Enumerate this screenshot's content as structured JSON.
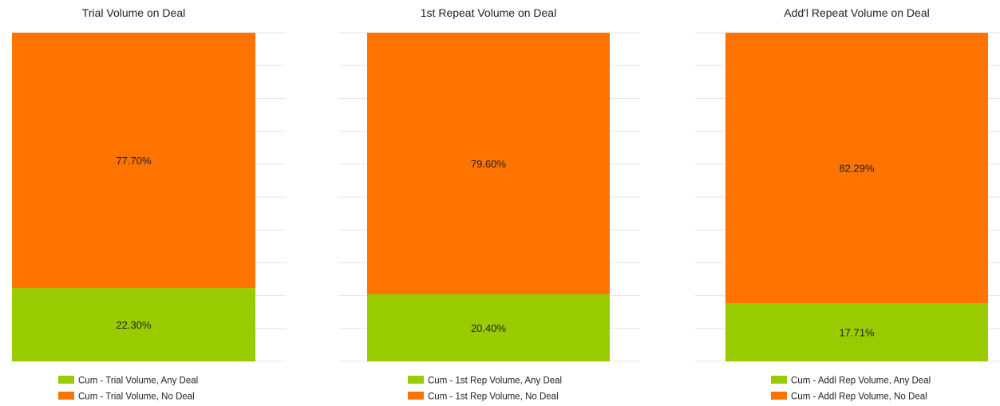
{
  "colors": {
    "any_deal": "#99cc00",
    "no_deal": "#ff7300"
  },
  "chart_data": [
    {
      "type": "bar",
      "stacked": true,
      "normalized": true,
      "title": "Trial Volume on Deal",
      "ylim": [
        0,
        100
      ],
      "grid": true,
      "legend": "bottom",
      "series": [
        {
          "name": "Cum - Trial Volume, Any Deal",
          "values": [
            22.3
          ],
          "label": "22.30%",
          "color": "#99cc00"
        },
        {
          "name": "Cum - Trial Volume, No Deal",
          "values": [
            77.7
          ],
          "label": "77.70%",
          "color": "#ff7300"
        }
      ]
    },
    {
      "type": "bar",
      "stacked": true,
      "normalized": true,
      "title": "1st Repeat Volume on Deal",
      "ylim": [
        0,
        100
      ],
      "grid": true,
      "legend": "bottom",
      "series": [
        {
          "name": "Cum - 1st Rep Volume, Any Deal",
          "values": [
            20.4
          ],
          "label": "20.40%",
          "color": "#99cc00"
        },
        {
          "name": "Cum - 1st Rep Volume, No Deal",
          "values": [
            79.6
          ],
          "label": "79.60%",
          "color": "#ff7300"
        }
      ]
    },
    {
      "type": "bar",
      "stacked": true,
      "normalized": true,
      "title": "Add'l Repeat Volume on Deal",
      "ylim": [
        0,
        100
      ],
      "grid": true,
      "legend": "bottom",
      "series": [
        {
          "name": "Cum - Addl Rep Volume, Any Deal",
          "values": [
            17.71
          ],
          "label": "17.71%",
          "color": "#99cc00"
        },
        {
          "name": "Cum - Addl Rep Volume, No Deal",
          "values": [
            82.29
          ],
          "label": "82.29%",
          "color": "#ff7300"
        }
      ]
    }
  ]
}
